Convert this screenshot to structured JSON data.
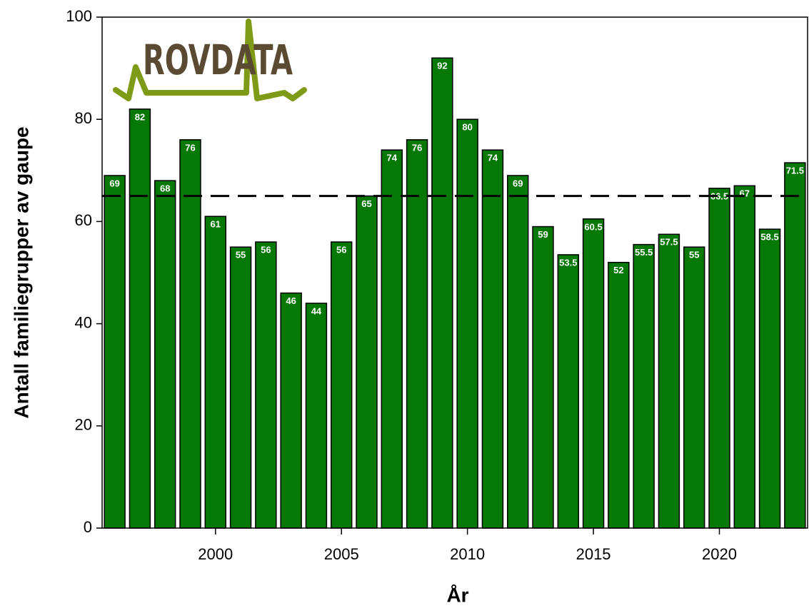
{
  "chart_data": {
    "type": "bar",
    "logo": "ROVDATA",
    "xlabel": "År",
    "ylabel": "Antall familiegrupper av gaupe",
    "x": [
      1996,
      1997,
      1998,
      1999,
      2000,
      2001,
      2002,
      2003,
      2004,
      2005,
      2006,
      2007,
      2008,
      2009,
      2010,
      2011,
      2012,
      2013,
      2014,
      2015,
      2016,
      2017,
      2018,
      2019,
      2020,
      2021,
      2022,
      2023
    ],
    "values": [
      69,
      82,
      68,
      76,
      61,
      55,
      56,
      46,
      44,
      56,
      65,
      74,
      76,
      92,
      80,
      74,
      69,
      59,
      53.5,
      60.5,
      52,
      55.5,
      57.5,
      55,
      66.5,
      67,
      58.5,
      71.5
    ],
    "color": "#067806",
    "reference_line": 65,
    "xlim": [
      1995.5,
      2023.5
    ],
    "xticks": [
      2000,
      2005,
      2010,
      2015,
      2020
    ],
    "ylim": [
      0,
      100
    ],
    "yticks": [
      0,
      20,
      40,
      60,
      80,
      100
    ]
  }
}
